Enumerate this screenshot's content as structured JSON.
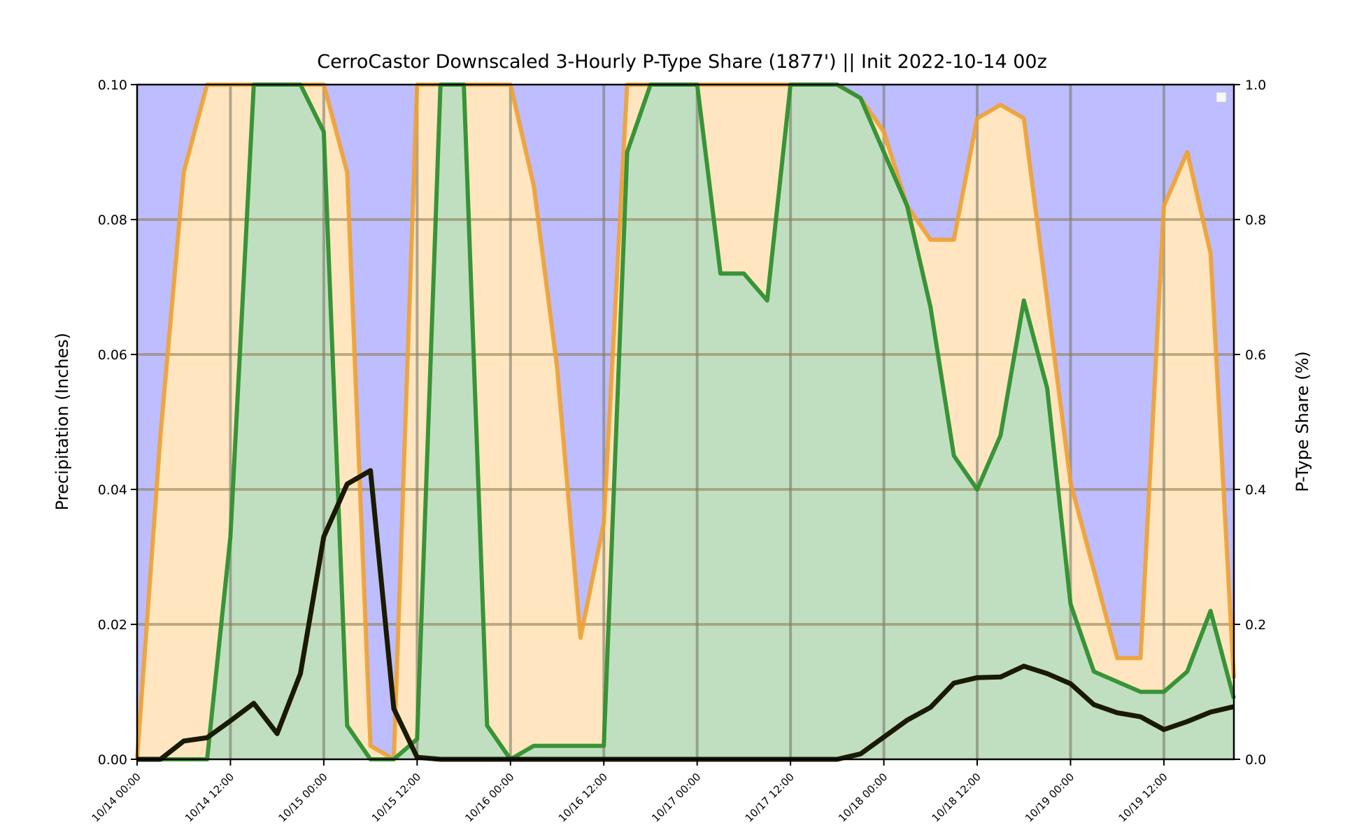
{
  "chart_data": {
    "type": "area",
    "title": "CerroCastor Downscaled 3-Hourly P-Type Share (1877') || Init 2022-10-14 00z",
    "ylabel": "Precipitation (Inches)",
    "y2label": "P-Type Share (%)",
    "ylim": [
      0,
      0.1
    ],
    "y2lim": [
      0,
      1.0
    ],
    "y_ticks": [
      "0.00",
      "0.02",
      "0.04",
      "0.06",
      "0.08",
      "0.10"
    ],
    "y2_ticks": [
      "0.0",
      "0.2",
      "0.4",
      "0.6",
      "0.8",
      "1.0"
    ],
    "x_tick_labels": [
      "10/14 00:00",
      "10/14 12:00",
      "10/15 00:00",
      "10/15 12:00",
      "10/16 00:00",
      "10/16 12:00",
      "10/17 00:00",
      "10/17 12:00",
      "10/18 00:00",
      "10/18 12:00",
      "10/19 00:00",
      "10/19 12:00"
    ],
    "x_hours": [
      0,
      3,
      6,
      9,
      12,
      15,
      18,
      21,
      24,
      27,
      30,
      33,
      36,
      39,
      42,
      45,
      48,
      51,
      54,
      57,
      60,
      63,
      66,
      69,
      72,
      75,
      78,
      81,
      84,
      87,
      90,
      93,
      96,
      99,
      102,
      105,
      108,
      111,
      114,
      117,
      120,
      123,
      126,
      129,
      132,
      135,
      138,
      141
    ],
    "grid": true,
    "legend": "top-right",
    "colors": {
      "snow_fill": "#bdbdff",
      "mix_fill": "#ffe6c0",
      "mix_line": "#f0a030",
      "rain_fill": "#c0dfc0",
      "rain_line": "#2f8f2f",
      "grid_light": "#b8a97e",
      "grid_dark": "#8585c4",
      "grid_green": "#86a386",
      "precip_line": "#1a1a00"
    },
    "series": [
      {
        "role": "mix",
        "values": [
          0.0,
          0.48,
          0.87,
          1.0,
          1.0,
          1.0,
          1.0,
          1.0,
          1.0,
          0.87,
          0.02,
          0.0,
          1.0,
          1.0,
          1.0,
          1.0,
          1.0,
          0.85,
          0.58,
          0.18,
          0.35,
          1.0,
          1.0,
          1.0,
          1.0,
          1.0,
          1.0,
          1.0,
          1.0,
          1.0,
          1.0,
          0.98,
          0.93,
          0.82,
          0.77,
          0.77,
          0.95,
          0.97,
          0.95,
          0.68,
          0.41,
          0.28,
          0.15,
          0.15,
          0.82,
          0.9,
          0.75,
          0.12
        ]
      },
      {
        "role": "rain",
        "values": [
          0.0,
          0.0,
          0.0,
          0.0,
          0.33,
          1.0,
          1.0,
          1.0,
          0.93,
          0.05,
          0.0,
          0.0,
          0.03,
          1.0,
          1.0,
          0.05,
          0.0,
          0.02,
          0.02,
          0.02,
          0.02,
          0.9,
          1.0,
          1.0,
          1.0,
          0.72,
          0.72,
          0.68,
          1.0,
          1.0,
          1.0,
          0.98,
          0.9,
          0.82,
          0.67,
          0.45,
          0.4,
          0.48,
          0.68,
          0.55,
          0.23,
          0.13,
          0.115,
          0.1,
          0.1,
          0.13,
          0.22,
          0.09
        ]
      },
      {
        "role": "precip",
        "values": [
          0.0,
          0.0,
          0.0027,
          0.0032,
          0.0057,
          0.0083,
          0.0038,
          0.0127,
          0.033,
          0.0408,
          0.0428,
          0.0075,
          0.0003,
          0.0,
          0.0,
          0.0,
          0.0,
          0.0,
          0.0,
          0.0,
          0.0,
          0.0,
          0.0,
          0.0,
          0.0,
          0.0,
          0.0,
          0.0,
          0.0,
          0.0,
          0.0,
          0.0008,
          0.0033,
          0.0058,
          0.0077,
          0.0113,
          0.0121,
          0.0122,
          0.0138,
          0.0127,
          0.0112,
          0.0081,
          0.0069,
          0.0063,
          0.0044,
          0.0056,
          0.007,
          0.0078
        ]
      }
    ]
  }
}
